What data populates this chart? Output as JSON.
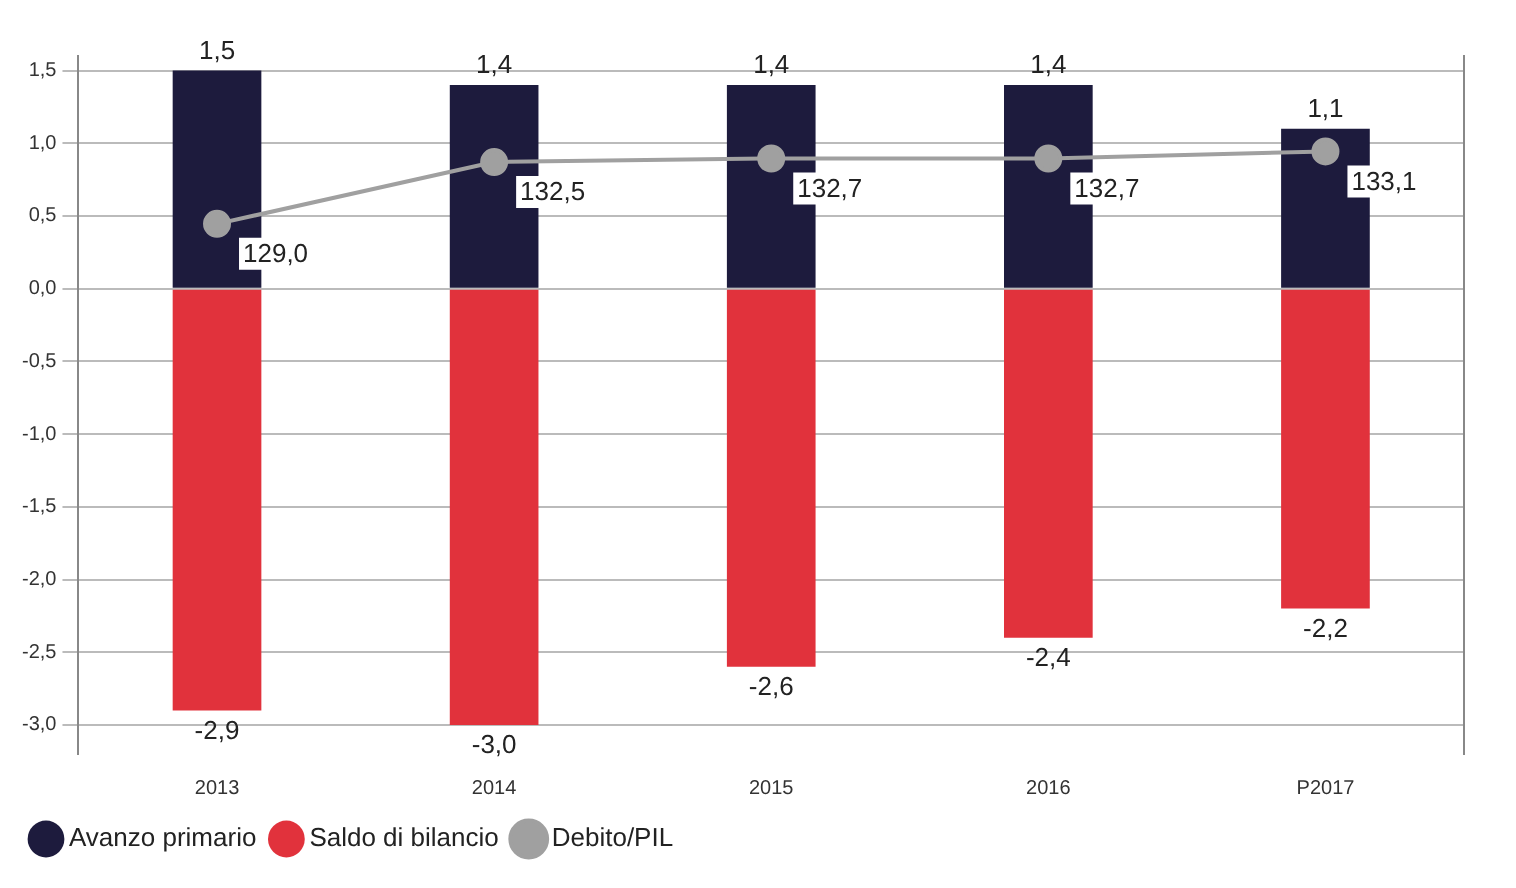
{
  "chart_data": {
    "type": "bar",
    "categories": [
      "2013",
      "2014",
      "2015",
      "2016",
      "P2017"
    ],
    "stacked": true,
    "series": [
      {
        "name": "Avanzo primario",
        "color": "#1d1b3d",
        "values": [
          1.5,
          1.4,
          1.4,
          1.4,
          1.1
        ],
        "value_labels": [
          "1,5",
          "1,4",
          "1,4",
          "1,4",
          "1,1"
        ]
      },
      {
        "name": "Saldo di bilancio",
        "color": "#e1323c",
        "values": [
          -2.9,
          -3.0,
          -2.6,
          -2.4,
          -2.2
        ],
        "value_labels": [
          "-2,9",
          "-3,0",
          "-2,6",
          "-2,4",
          "-2,2"
        ]
      },
      {
        "name": "Debito/PIL",
        "type": "line",
        "axis": "y2",
        "color": "#a0a0a0",
        "values": [
          129.0,
          132.5,
          132.7,
          132.7,
          133.1
        ],
        "value_labels": [
          "129,0",
          "132,5",
          "132,7",
          "132,7",
          "133,1"
        ]
      }
    ],
    "ylim": [
      -3.2,
      1.6
    ],
    "yticks": [
      {
        "value": -3,
        "label": "-3,0"
      },
      {
        "value": -2.5,
        "label": "-2,5"
      },
      {
        "value": -2,
        "label": "-2,0"
      },
      {
        "value": -1.5,
        "label": "-1,5"
      },
      {
        "value": -1,
        "label": "-1,0"
      },
      {
        "value": -0.5,
        "label": "-0,5"
      },
      {
        "value": 0,
        "label": "0,0"
      },
      {
        "value": 0.5,
        "label": "0,5"
      },
      {
        "value": 1,
        "label": "1,0"
      },
      {
        "value": 1.5,
        "label": "1,5"
      }
    ],
    "y2lim": [
      99,
      138.5
    ],
    "tick_labels": "y",
    "grid": "y",
    "legend": "bottom left",
    "marker": "circle",
    "line_style": "solid"
  }
}
